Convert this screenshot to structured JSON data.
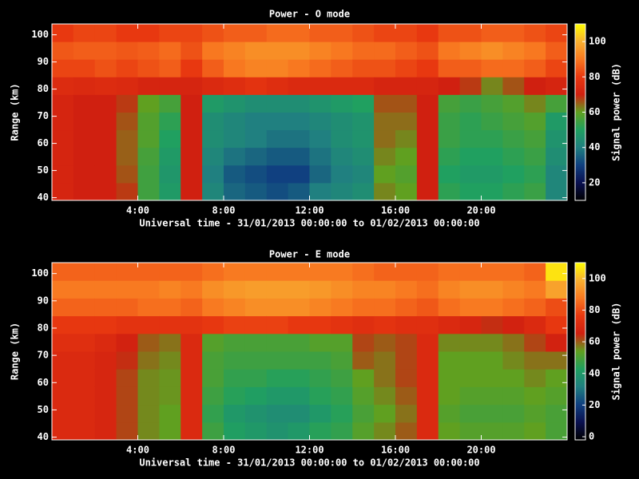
{
  "chart_data": [
    {
      "type": "heatmap",
      "title": "Power - O mode",
      "xlabel": "Universal time - 31/01/2013 00:00:00 to 01/02/2013 00:00:00",
      "ylabel": "Range (km)",
      "colorbar_label": "Signal power (dB)",
      "x": [
        0,
        1,
        2,
        3,
        4,
        5,
        6,
        7,
        8,
        9,
        10,
        11,
        12,
        13,
        14,
        15,
        16,
        17,
        18,
        19,
        20,
        21,
        22,
        23,
        24
      ],
      "y": [
        39,
        45.5,
        52,
        58.5,
        65,
        71.5,
        78,
        84.5,
        91,
        97.5,
        104
      ],
      "xlim": [
        0,
        24
      ],
      "ylim": [
        39,
        104
      ],
      "clim": [
        10,
        110
      ],
      "xticks": [
        {
          "value": 4,
          "label": "4:00"
        },
        {
          "value": 8,
          "label": "8:00"
        },
        {
          "value": 12,
          "label": "12:00"
        },
        {
          "value": 16,
          "label": "16:00"
        },
        {
          "value": 20,
          "label": "20:00"
        }
      ],
      "yticks": [
        40,
        50,
        60,
        70,
        80,
        90,
        100
      ],
      "cticks": [
        20,
        40,
        60,
        80,
        100
      ],
      "colormap": [
        "#000000",
        "#0a1050",
        "#104080",
        "#208080",
        "#20a060",
        "#60a020",
        "#d02010",
        "#e83810",
        "#f87820",
        "#f8b030",
        "#ffff00"
      ],
      "values": [
        [
          72,
          72,
          72,
          72,
          72,
          72,
          75,
          82,
          85,
          80
        ],
        [
          70,
          70,
          70,
          70,
          70,
          70,
          74,
          82,
          86,
          82
        ],
        [
          70,
          70,
          70,
          70,
          70,
          70,
          75,
          84,
          86,
          82
        ],
        [
          68,
          66,
          65,
          65,
          66,
          68,
          74,
          82,
          85,
          80
        ],
        [
          55,
          55,
          56,
          58,
          58,
          60,
          72,
          84,
          86,
          80
        ],
        [
          48,
          47,
          48,
          50,
          52,
          56,
          72,
          86,
          88,
          82
        ],
        [
          70,
          70,
          70,
          70,
          70,
          70,
          72,
          80,
          84,
          82
        ],
        [
          42,
          40,
          42,
          44,
          44,
          48,
          74,
          86,
          90,
          84
        ],
        [
          36,
          34,
          38,
          42,
          42,
          46,
          76,
          90,
          92,
          86
        ],
        [
          34,
          32,
          36,
          40,
          40,
          44,
          78,
          92,
          94,
          86
        ],
        [
          32,
          30,
          34,
          38,
          40,
          44,
          76,
          92,
          94,
          88
        ],
        [
          34,
          30,
          34,
          38,
          40,
          44,
          74,
          90,
          94,
          88
        ],
        [
          40,
          36,
          38,
          40,
          42,
          46,
          74,
          88,
          92,
          86
        ],
        [
          42,
          40,
          42,
          44,
          44,
          48,
          74,
          86,
          90,
          86
        ],
        [
          44,
          42,
          44,
          46,
          46,
          50,
          74,
          84,
          88,
          84
        ],
        [
          62,
          60,
          62,
          64,
          64,
          66,
          72,
          84,
          88,
          82
        ],
        [
          60,
          58,
          60,
          62,
          64,
          66,
          72,
          82,
          86,
          82
        ],
        [
          70,
          70,
          70,
          70,
          70,
          70,
          72,
          80,
          84,
          80
        ],
        [
          52,
          50,
          52,
          54,
          54,
          56,
          70,
          86,
          90,
          84
        ],
        [
          50,
          48,
          50,
          52,
          52,
          54,
          68,
          86,
          92,
          84
        ],
        [
          50,
          48,
          50,
          52,
          54,
          56,
          62,
          88,
          94,
          86
        ],
        [
          52,
          50,
          52,
          54,
          56,
          58,
          66,
          88,
          92,
          86
        ],
        [
          54,
          52,
          54,
          56,
          58,
          62,
          70,
          86,
          90,
          84
        ],
        [
          42,
          42,
          44,
          46,
          48,
          56,
          72,
          82,
          86,
          82
        ]
      ]
    },
    {
      "type": "heatmap",
      "title": "Power - E mode",
      "xlabel": "Universal time - 31/01/2013 00:00:00 to 01/02/2013 00:00:00",
      "ylabel": "Range (km)",
      "colorbar_label": "Signal power (dB)",
      "x": [
        0,
        1,
        2,
        3,
        4,
        5,
        6,
        7,
        8,
        9,
        10,
        11,
        12,
        13,
        14,
        15,
        16,
        17,
        18,
        19,
        20,
        21,
        22,
        23,
        24
      ],
      "y": [
        39,
        45.5,
        52,
        58.5,
        65,
        71.5,
        78,
        84.5,
        91,
        97.5,
        104
      ],
      "xlim": [
        0,
        24
      ],
      "ylim": [
        39,
        104
      ],
      "clim": [
        -2,
        110
      ],
      "xticks": [
        {
          "value": 4,
          "label": "4:00"
        },
        {
          "value": 8,
          "label": "8:00"
        },
        {
          "value": 12,
          "label": "12:00"
        },
        {
          "value": 16,
          "label": "16:00"
        },
        {
          "value": 20,
          "label": "20:00"
        }
      ],
      "yticks": [
        40,
        50,
        60,
        70,
        80,
        90,
        100
      ],
      "cticks": [
        0,
        20,
        40,
        60,
        80,
        100
      ],
      "colormap": [
        "#000000",
        "#0a1050",
        "#104080",
        "#208080",
        "#20a060",
        "#60a020",
        "#d02010",
        "#e83810",
        "#f87820",
        "#f8b030",
        "#ffff00"
      ],
      "values": [
        [
          70,
          70,
          70,
          70,
          70,
          72,
          76,
          84,
          88,
          84
        ],
        [
          70,
          70,
          70,
          70,
          70,
          72,
          76,
          84,
          88,
          84
        ],
        [
          68,
          68,
          68,
          68,
          68,
          70,
          76,
          84,
          88,
          84
        ],
        [
          62,
          62,
          62,
          62,
          64,
          66,
          74,
          84,
          88,
          84
        ],
        [
          56,
          56,
          56,
          56,
          58,
          60,
          74,
          86,
          88,
          84
        ],
        [
          54,
          54,
          55,
          55,
          56,
          58,
          74,
          86,
          90,
          84
        ],
        [
          70,
          70,
          70,
          70,
          70,
          70,
          74,
          84,
          88,
          84
        ],
        [
          48,
          46,
          48,
          50,
          50,
          52,
          76,
          88,
          92,
          86
        ],
        [
          42,
          40,
          44,
          46,
          48,
          50,
          78,
          90,
          94,
          88
        ],
        [
          40,
          38,
          42,
          46,
          48,
          50,
          78,
          92,
          95,
          88
        ],
        [
          38,
          36,
          40,
          44,
          48,
          50,
          78,
          92,
          95,
          88
        ],
        [
          40,
          36,
          40,
          44,
          48,
          50,
          76,
          92,
          95,
          88
        ],
        [
          44,
          40,
          44,
          46,
          48,
          52,
          76,
          90,
          94,
          88
        ],
        [
          46,
          44,
          46,
          48,
          50,
          52,
          74,
          88,
          92,
          88
        ],
        [
          52,
          50,
          52,
          54,
          60,
          62,
          72,
          86,
          90,
          86
        ],
        [
          56,
          54,
          56,
          58,
          58,
          60,
          74,
          86,
          90,
          84
        ],
        [
          60,
          58,
          60,
          62,
          62,
          62,
          72,
          84,
          88,
          84
        ],
        [
          70,
          70,
          70,
          70,
          70,
          70,
          72,
          82,
          86,
          84
        ],
        [
          54,
          52,
          54,
          54,
          54,
          56,
          70,
          86,
          90,
          86
        ],
        [
          52,
          50,
          52,
          54,
          54,
          56,
          68,
          88,
          92,
          86
        ],
        [
          52,
          50,
          52,
          54,
          54,
          56,
          64,
          88,
          92,
          86
        ],
        [
          52,
          50,
          52,
          54,
          56,
          58,
          66,
          86,
          90,
          86
        ],
        [
          54,
          52,
          54,
          56,
          58,
          62,
          70,
          84,
          88,
          84
        ],
        [
          50,
          50,
          52,
          54,
          58,
          66,
          76,
          80,
          96,
          106
        ]
      ]
    }
  ]
}
